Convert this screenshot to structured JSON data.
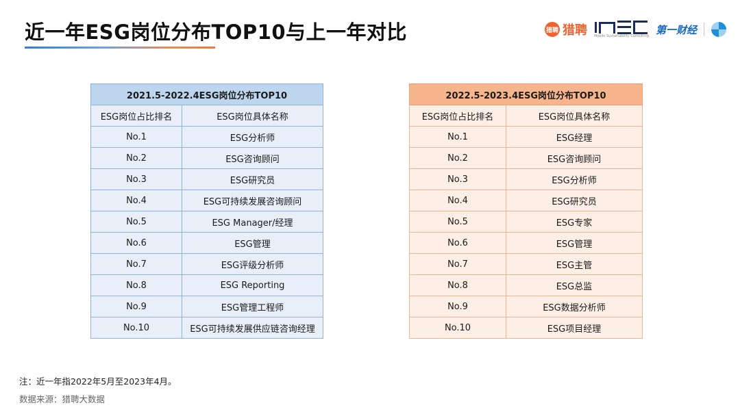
{
  "header": {
    "title": "近一年ESG岗位分布TOP10与上一年对比",
    "logos": {
      "liepin": {
        "badge": "猎聘",
        "text": "猎聘"
      },
      "insc": {
        "tagline": "Mobile Sustainability Consulting"
      },
      "yicai": {
        "text": "第一财经"
      }
    }
  },
  "left_table": {
    "caption": "2021.5-2022.4ESG岗位分布TOP10",
    "columns": [
      "ESG岗位占比排名",
      "ESG岗位具体名称"
    ],
    "rows": [
      [
        "No.1",
        "ESG分析师"
      ],
      [
        "No.2",
        "ESG咨询顾问"
      ],
      [
        "No.3",
        "ESG研究员"
      ],
      [
        "No.4",
        "ESG可持续发展咨询顾问"
      ],
      [
        "No.5",
        "ESG Manager/经理"
      ],
      [
        "No.6",
        "ESG管理"
      ],
      [
        "No.7",
        "ESG评级分析师"
      ],
      [
        "No.8",
        "ESG Reporting"
      ],
      [
        "No.9",
        "ESG管理工程师"
      ],
      [
        "No.10",
        "ESG可持续发展供应链咨询经理"
      ]
    ]
  },
  "right_table": {
    "caption": "2022.5-2023.4ESG岗位分布TOP10",
    "columns": [
      "ESG岗位占比排名",
      "ESG岗位具体名称"
    ],
    "rows": [
      [
        "No.1",
        "ESG经理"
      ],
      [
        "No.2",
        "ESG咨询顾问"
      ],
      [
        "No.3",
        "ESG分析师"
      ],
      [
        "No.4",
        "ESG研究员"
      ],
      [
        "No.5",
        "ESG专家"
      ],
      [
        "No.6",
        "ESG管理"
      ],
      [
        "No.7",
        "ESG主管"
      ],
      [
        "No.8",
        "ESG总监"
      ],
      [
        "No.9",
        "ESG数据分析师"
      ],
      [
        "No.10",
        "ESG项目经理"
      ]
    ]
  },
  "footer": {
    "note": "注：近一年指2022年5月至2023年4月。",
    "source": "数据来源：猎聘大数据"
  },
  "colors": {
    "left_header": "#bdd6ee",
    "left_body": "#e9eff8",
    "right_header": "#f7b58d",
    "right_body": "#fdeee6",
    "brand_orange": "#f2622e"
  }
}
